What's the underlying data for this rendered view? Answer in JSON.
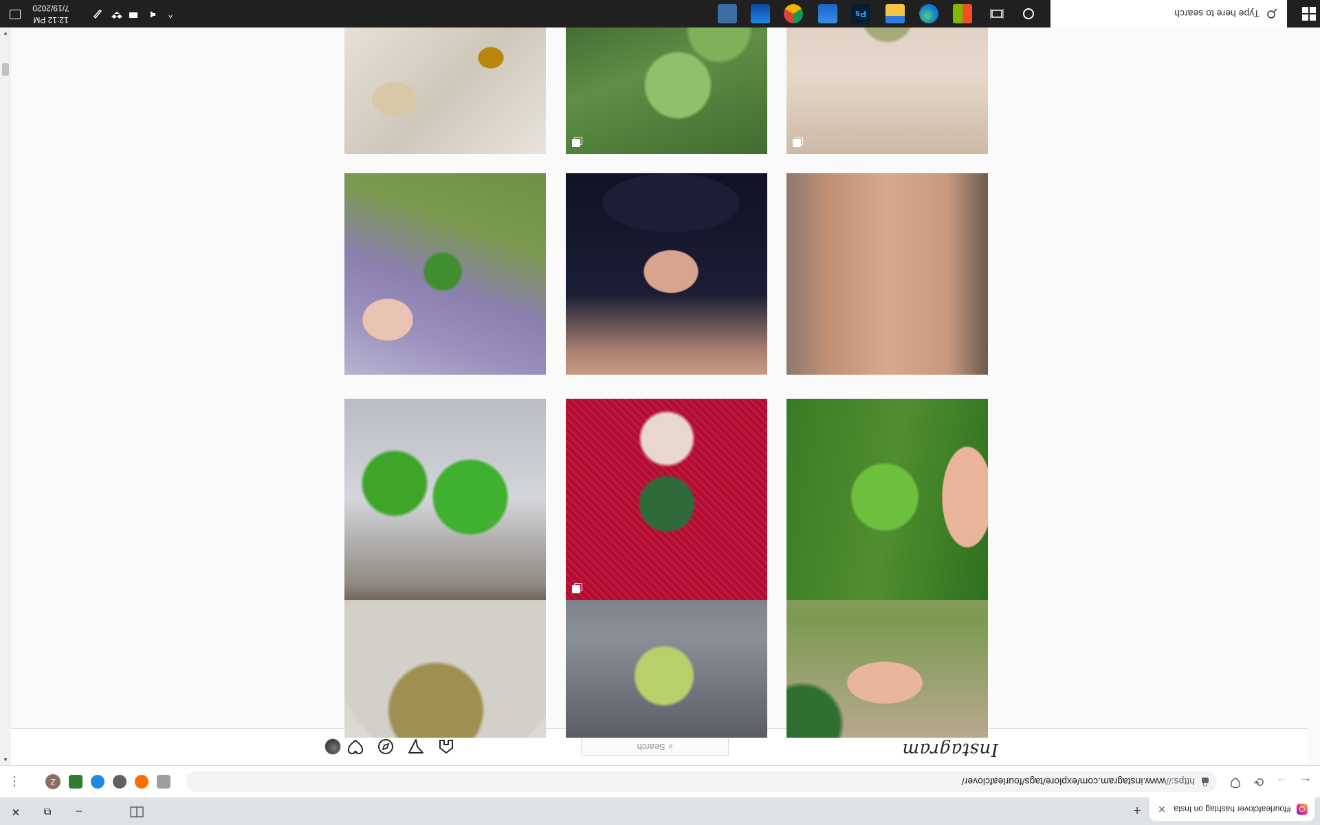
{
  "browser": {
    "tab_title": "#fourleafclover hashtag on Insta",
    "tab_close": "✕",
    "new_tab": "+",
    "url_scheme": "https://",
    "url_rest": "www.instagram.com/explore/tags/fourleafclover/",
    "profile_initial": "Z",
    "back_icon": "←",
    "forward_icon": "→",
    "reload_icon": "⟳",
    "menu_icon": "⋮",
    "window_minimize": "–",
    "window_restore": "⧉",
    "window_close": "✕"
  },
  "instagram": {
    "logo_text": "Instagram",
    "search_placeholder": "Search",
    "search_icon": "⌕",
    "nav_icons": [
      "home-icon",
      "direct-message-icon",
      "explore-compass-icon",
      "activity-heart-icon",
      "profile-avatar"
    ]
  },
  "grid": {
    "posts": [
      {
        "row": 1,
        "col": 1,
        "desc_icon": "clover-necklace-photo",
        "multi": false
      },
      {
        "row": 1,
        "col": 2,
        "desc_icon": "clover-leaves-photo",
        "multi": true
      },
      {
        "row": 1,
        "col": 3,
        "desc_icon": "pressed-clover-frame-photo",
        "multi": true
      },
      {
        "row": 2,
        "col": 1,
        "desc_icon": "hand-holding-clover-photo",
        "multi": false
      },
      {
        "row": 2,
        "col": 2,
        "desc_icon": "clover-ring-photo",
        "multi": false
      },
      {
        "row": 2,
        "col": 3,
        "desc_icon": "clover-bracelet-photo",
        "multi": false
      },
      {
        "row": 3,
        "col": 1,
        "desc_icon": "two-clovers-photo",
        "multi": false
      },
      {
        "row": 3,
        "col": 2,
        "desc_icon": "knitted-clover-photo",
        "multi": true
      },
      {
        "row": 3,
        "col": 3,
        "desc_icon": "clover-in-grass-photo",
        "multi": false
      },
      {
        "row": 4,
        "col": 1,
        "desc_icon": "red-bead-bracelet-photo",
        "multi": false
      },
      {
        "row": 4,
        "col": 2,
        "desc_icon": "clover-on-wood-photo",
        "multi": false
      },
      {
        "row": 4,
        "col": 3,
        "desc_icon": "child-hand-clover-photo",
        "multi": false
      }
    ]
  },
  "taskbar": {
    "search_placeholder": "Type here to search",
    "time": "12:12 PM",
    "date": "7/19/2020",
    "apps": [
      "cortana-icon",
      "task-view-icon",
      "microsoft-store-icon",
      "edge-icon",
      "file-explorer-icon",
      "photoshop-icon",
      "onedrive-icon",
      "chrome-icon",
      "control-panel-icon",
      "calculator-icon"
    ],
    "photoshop_label": "Ps",
    "tray_chevron": "^",
    "colors": {
      "bg": "#202020",
      "chrome": "#dee1e6"
    }
  }
}
